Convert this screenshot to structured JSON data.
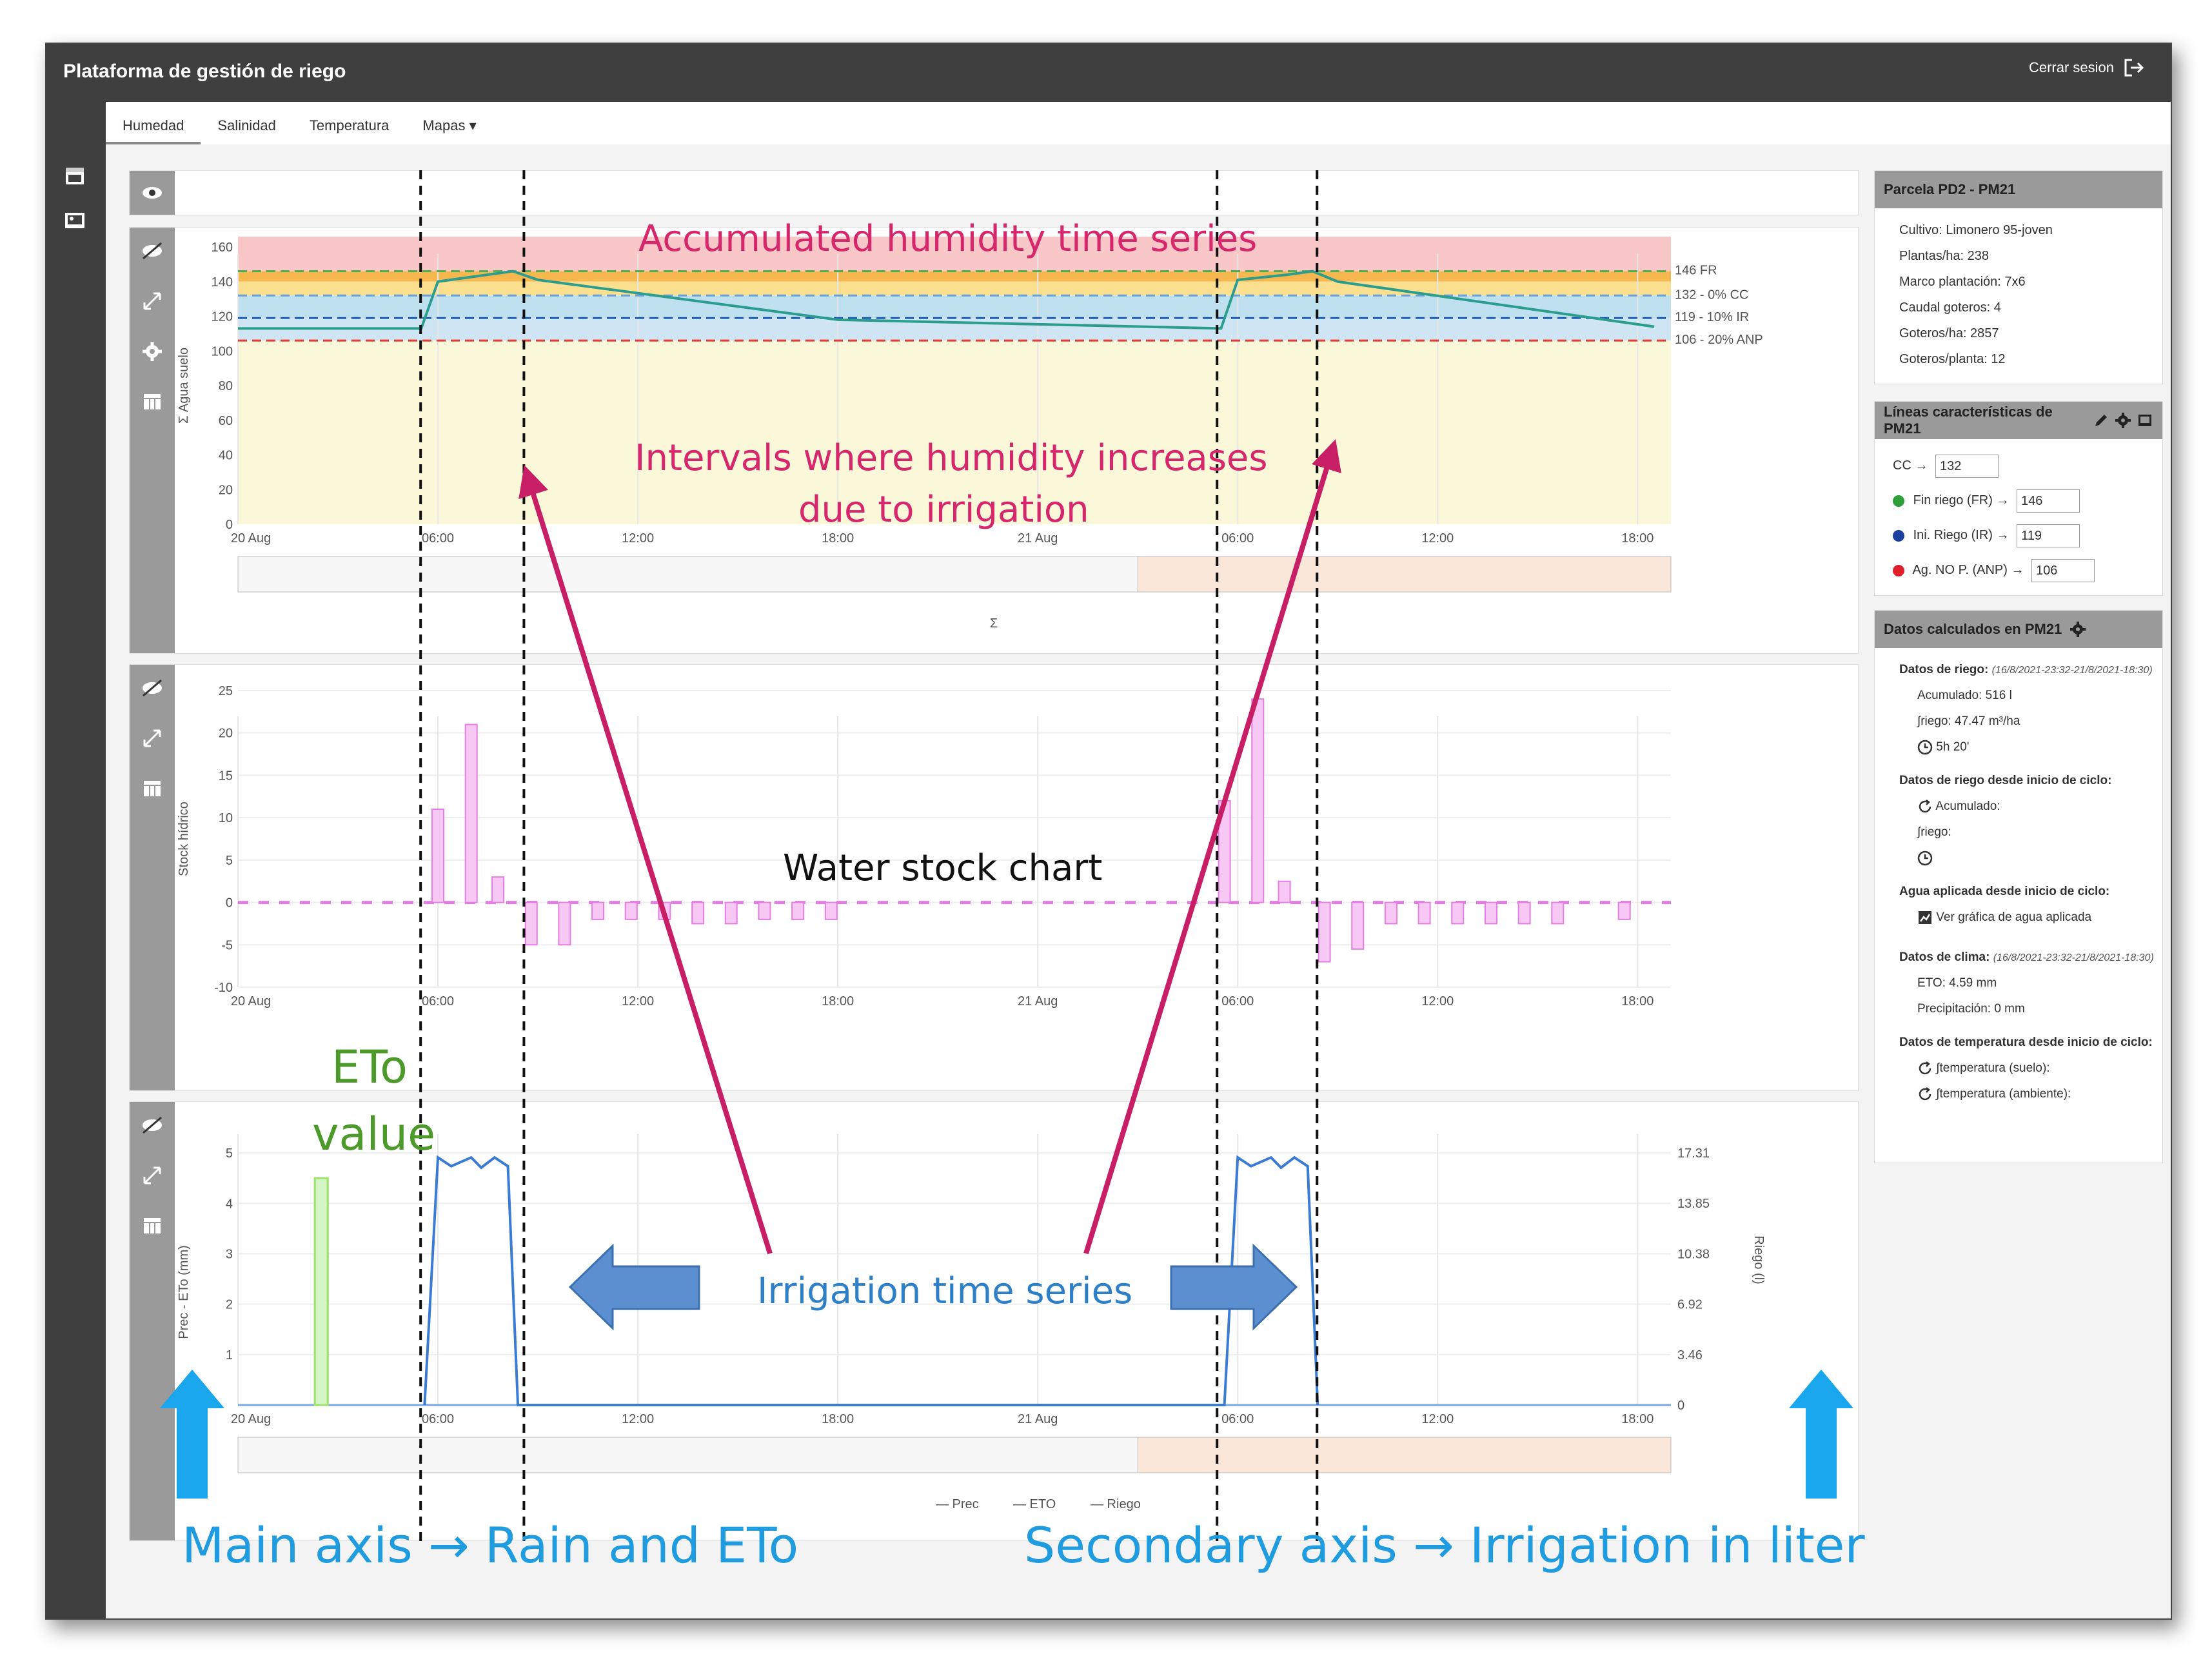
{
  "app": {
    "title": "Plataforma de gestión de riego",
    "logout_label": "Cerrar sesion"
  },
  "tabs": [
    "Humedad",
    "Salinidad",
    "Temperatura",
    "Mapas ▾"
  ],
  "x_ticks": [
    "20 Aug",
    "06:00",
    "12:00",
    "18:00",
    "21 Aug",
    "06:00",
    "12:00",
    "18:00"
  ],
  "annotations": {
    "humidity_title": "Accumulated humidity time series",
    "intervals_1": "Intervals where humidity increases",
    "intervals_2": "due to irrigation",
    "water_stock": "Water stock chart",
    "eto_1": "ETo",
    "eto_2": "value",
    "irrigation_series": "Irrigation time series",
    "main_axis": "Main axis → Rain and ETo",
    "secondary_axis": "Secondary axis → Irrigation in liters"
  },
  "chart_data": [
    {
      "type": "line",
      "ylabel": "Σ Agua suelo",
      "ylim": [
        0,
        160
      ],
      "y_ticks": [
        "0",
        "20",
        "40",
        "60",
        "80",
        "100",
        "120",
        "140",
        "160"
      ],
      "x": [
        "20 Aug 00:00",
        "20 Aug 05:30",
        "20 Aug 06:00",
        "20 Aug 07:30",
        "20 Aug 08:15",
        "20 Aug 09:00",
        "20 Aug 18:00",
        "21 Aug 05:30",
        "21 Aug 06:00",
        "21 Aug 07:30",
        "21 Aug 08:15",
        "21 Aug 09:00",
        "21 Aug 18:00"
      ],
      "series": [
        {
          "name": "Σ",
          "values": [
            113,
            113,
            140,
            144,
            146,
            141,
            118,
            113,
            141,
            144,
            146,
            140,
            114
          ],
          "color": "#2a9d8f"
        }
      ],
      "thresholds": [
        {
          "label": "146 FR",
          "value": 146,
          "color": "#4caf50"
        },
        {
          "label": "132 - 0% CC",
          "value": 132,
          "color": "#6a9fd6"
        },
        {
          "label": "119 - 10% IR",
          "value": 119,
          "color": "#1f5fb8"
        },
        {
          "label": "106 - 20% ANP",
          "value": 106,
          "color": "#e53935"
        }
      ],
      "legend": "Σ",
      "grid": true
    },
    {
      "type": "bar",
      "ylabel": "Stock hídrico",
      "ylim": [
        -10,
        25
      ],
      "y_ticks": [
        "-10",
        "-5",
        "0",
        "5",
        "10",
        "15",
        "20",
        "25"
      ],
      "x_hours": [
        6.0,
        7.0,
        7.8,
        8.8,
        9.8,
        10.8,
        11.8,
        12.8,
        13.8,
        14.8,
        15.8,
        16.8,
        17.8,
        29.6,
        30.6,
        31.4,
        32.6,
        33.6,
        34.6,
        35.6,
        36.6,
        37.6,
        38.6,
        39.6,
        41.6
      ],
      "values": [
        11,
        21,
        3,
        -5,
        -5,
        -2,
        -2,
        -2,
        -2.5,
        -2.5,
        -2,
        -2,
        -2,
        12,
        24,
        2.5,
        -7,
        -5.5,
        -2.5,
        -2.5,
        -2.5,
        -2.5,
        -2.5,
        -2.5,
        -2
      ],
      "color": "#e27fe0",
      "grid": true
    },
    {
      "type": "line",
      "ylabel": "Prec - ETo (mm)",
      "y2label": "Riego (l)",
      "ylim": [
        0,
        5.5
      ],
      "y_ticks": [
        "1",
        "2",
        "3",
        "4",
        "5"
      ],
      "y2_ticks": [
        "0",
        "3.46",
        "6.92",
        "10.38",
        "13.85",
        "17.31"
      ],
      "eto_bar": {
        "x_hour": 2.5,
        "value": 4.5,
        "color": "#9be36b"
      },
      "series": [
        {
          "name": "Riego",
          "color": "#3a7bd5",
          "points_hours": [
            5.6,
            6.0,
            6.4,
            7.0,
            7.3,
            7.7,
            8.1,
            8.4,
            29.6,
            30.0,
            30.4,
            31.0,
            31.3,
            31.7,
            32.1,
            32.4
          ],
          "values": [
            0,
            17.0,
            16.4,
            17.0,
            16.3,
            17.0,
            16.4,
            0,
            0,
            17.0,
            16.4,
            17.0,
            16.3,
            17.0,
            16.4,
            0
          ]
        }
      ],
      "legend": [
        "Prec",
        "ETO",
        "Riego"
      ],
      "grid": true
    }
  ],
  "sidebar": {
    "parcela": {
      "title": "Parcela PD2 - PM21",
      "lines": [
        "Cultivo: Limonero 95-joven",
        "Plantas/ha: 238",
        "Marco plantación: 7x6",
        "Caudal goteros: 4",
        "Goteros/ha: 2857",
        "Goteros/planta: 12"
      ]
    },
    "lineas": {
      "title": "Líneas características de PM21",
      "rows": [
        {
          "label": "CC →",
          "value": "132",
          "color": ""
        },
        {
          "label": "Fin riego (FR) →",
          "value": "146",
          "color": "#2e9e3a"
        },
        {
          "label": "Ini. Riego (IR) →",
          "value": "119",
          "color": "#1b3f9c"
        },
        {
          "label": "Ag. NO P. (ANP) →",
          "value": "106",
          "color": "#e01f2d"
        }
      ]
    },
    "datos": {
      "title": "Datos calculados en PM21",
      "riego_label": "Datos de riego:",
      "riego_range": "(16/8/2021-23:32-21/8/2021-18:30)",
      "acumulado": "Acumulado: 516 l",
      "riego_val": "∫riego: 47.47 m³/ha",
      "tiempo": "5h 20'",
      "ciclo_label": "Datos de riego desde inicio de ciclo:",
      "ciclo_acumulado": "Acumulado:",
      "ciclo_riego": "∫riego:",
      "agua_label": "Agua aplicada desde inicio de ciclo:",
      "agua_link": "Ver gráfica de agua aplicada",
      "clima_label": "Datos de clima:",
      "clima_range": "(16/8/2021-23:32-21/8/2021-18:30)",
      "eto": "ETO: 4.59 mm",
      "precip": "Precipitación: 0 mm",
      "temp_label": "Datos de temperatura desde inicio de ciclo:",
      "temp_suelo": "∫temperatura (suelo):",
      "temp_amb": "∫temperatura (ambiente):"
    }
  }
}
